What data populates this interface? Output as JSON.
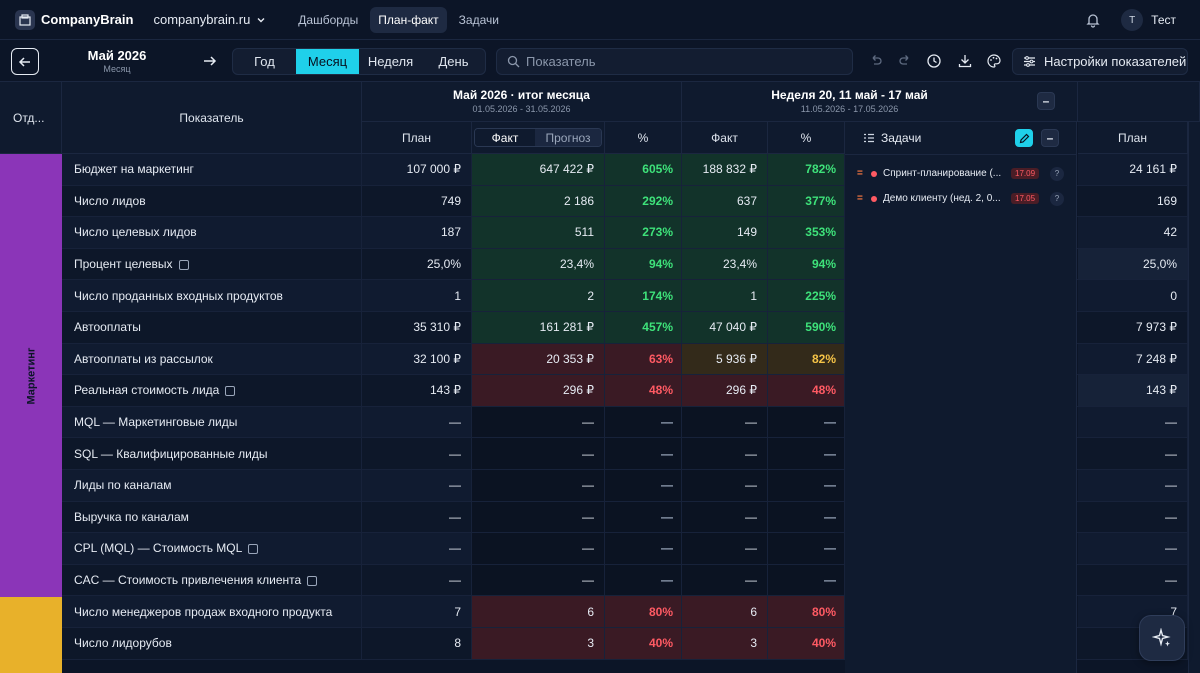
{
  "app": {
    "brand": "CompanyBrain",
    "workspace": "companybrain.ru"
  },
  "nav": [
    "Дашборды",
    "План-факт",
    "Задачи"
  ],
  "user": {
    "initial": "Т",
    "name": "Тест"
  },
  "toolbar": {
    "period_title": "Май 2026",
    "period_sub": "Месяц",
    "segments": [
      "Год",
      "Месяц",
      "Неделя",
      "День"
    ],
    "search_placeholder": "Показатель",
    "settings_label": "Настройки показателей"
  },
  "table": {
    "dept_header": "Отд...",
    "indicator_header": "Показатель",
    "month_group": {
      "title": "Май 2026 · итог месяца",
      "range": "01.05.2026 - 31.05.2026"
    },
    "week_group": {
      "title": "Неделя 20, 11 май - 17 май",
      "range": "11.05.2026 - 17.05.2026"
    },
    "col_plan": "План",
    "col_fact": "Факт",
    "col_forecast": "Прогноз",
    "col_pct": "%",
    "col_tasks": "Задачи",
    "departments": [
      {
        "name": "Маркетинг",
        "color": "#8b35b8"
      },
      {
        "name": "",
        "color": "#e8b12a"
      }
    ],
    "rows": [
      {
        "name": "Бюджет на маркетинг",
        "info": false,
        "plan": "107 000 ₽",
        "fact": "647 422 ₽",
        "pct": "605%",
        "wfact": "188 832 ₽",
        "wpct": "782%",
        "next": "24 161 ₽",
        "mt": "g",
        "wt": "g"
      },
      {
        "name": "Число лидов",
        "info": false,
        "plan": "749",
        "fact": "2 186",
        "pct": "292%",
        "wfact": "637",
        "wpct": "377%",
        "next": "169",
        "mt": "g",
        "wt": "g"
      },
      {
        "name": "Число целевых лидов",
        "info": false,
        "plan": "187",
        "fact": "511",
        "pct": "273%",
        "wfact": "149",
        "wpct": "353%",
        "next": "42",
        "mt": "g",
        "wt": "g"
      },
      {
        "name": "Процент целевых",
        "info": true,
        "plan": "25,0%",
        "fact": "23,4%",
        "pct": "94%",
        "wfact": "23,4%",
        "wpct": "94%",
        "next": "25,0%",
        "mt": "g",
        "wt": "g"
      },
      {
        "name": "Число проданных входных продуктов",
        "info": false,
        "plan": "1",
        "fact": "2",
        "pct": "174%",
        "wfact": "1",
        "wpct": "225%",
        "next": "0",
        "mt": "g",
        "wt": "g"
      },
      {
        "name": "Автооплаты",
        "info": false,
        "plan": "35 310 ₽",
        "fact": "161 281 ₽",
        "pct": "457%",
        "wfact": "47 040 ₽",
        "wpct": "590%",
        "next": "7 973 ₽",
        "mt": "g",
        "wt": "g"
      },
      {
        "name": "Автооплаты из рассылок",
        "info": false,
        "plan": "32 100 ₽",
        "fact": "20 353 ₽",
        "pct": "63%",
        "wfact": "5 936 ₽",
        "wpct": "82%",
        "next": "7 248 ₽",
        "mt": "r",
        "wt": "y"
      },
      {
        "name": "Реальная стоимость лида",
        "info": true,
        "plan": "143 ₽",
        "fact": "296 ₽",
        "pct": "48%",
        "wfact": "296 ₽",
        "wpct": "48%",
        "next": "143 ₽",
        "mt": "r",
        "wt": "r"
      },
      {
        "name": "MQL — Маркетинговые лиды",
        "info": false,
        "plan": "—",
        "fact": "—",
        "pct": "—",
        "wfact": "—",
        "wpct": "—",
        "next": "—",
        "mt": "n",
        "wt": "n"
      },
      {
        "name": "SQL — Квалифицированные лиды",
        "info": false,
        "plan": "—",
        "fact": "—",
        "pct": "—",
        "wfact": "—",
        "wpct": "—",
        "next": "—",
        "mt": "n",
        "wt": "n"
      },
      {
        "name": "Лиды по каналам",
        "info": false,
        "plan": "—",
        "fact": "—",
        "pct": "—",
        "wfact": "—",
        "wpct": "—",
        "next": "—",
        "mt": "n",
        "wt": "n"
      },
      {
        "name": "Выручка по каналам",
        "info": false,
        "plan": "—",
        "fact": "—",
        "pct": "—",
        "wfact": "—",
        "wpct": "—",
        "next": "—",
        "mt": "n",
        "wt": "n"
      },
      {
        "name": "CPL (MQL) — Стоимость MQL",
        "info": true,
        "plan": "—",
        "fact": "—",
        "pct": "—",
        "wfact": "—",
        "wpct": "—",
        "next": "—",
        "mt": "n",
        "wt": "n"
      },
      {
        "name": "CAC — Стоимость привлечения клиента",
        "info": true,
        "plan": "—",
        "fact": "—",
        "pct": "—",
        "wfact": "—",
        "wpct": "—",
        "next": "—",
        "mt": "n",
        "wt": "n"
      },
      {
        "name": "Число менеджеров продаж входного продукта",
        "info": false,
        "plan": "7",
        "fact": "6",
        "pct": "80%",
        "wfact": "6",
        "wpct": "80%",
        "next": "7",
        "mt": "r",
        "wt": "r"
      },
      {
        "name": "Число лидорубов",
        "info": false,
        "plan": "8",
        "fact": "3",
        "pct": "40%",
        "wfact": "3",
        "wpct": "40%",
        "next": "8",
        "mt": "r",
        "wt": "r"
      }
    ],
    "tasks": [
      {
        "title": "Спринт-планирование (...",
        "date": "17.09"
      },
      {
        "title": "Демо клиенту (нед. 2, 0...",
        "date": "17.05"
      }
    ]
  },
  "colors": {
    "accent": "#1fd0ea",
    "good": "#3ee27a",
    "bad": "#ff5a63",
    "warn": "#f5c347"
  }
}
